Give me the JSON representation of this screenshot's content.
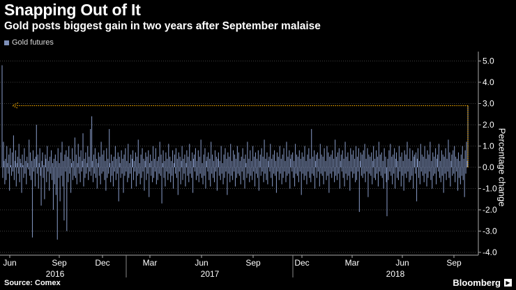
{
  "header": {
    "title": "Snapping Out of It",
    "subtitle": "Gold posts biggest gain in two years after September malaise"
  },
  "legend": {
    "label": "Gold futures",
    "swatch_color": "#7d8fb8"
  },
  "footer": {
    "source": "Source: Comex",
    "brand": "Bloomberg"
  },
  "colors": {
    "bar": "#7d8fb8",
    "arrow": "#f2a900",
    "grid": "#555555",
    "background": "#000000"
  },
  "chart_data": {
    "type": "bar",
    "series": [
      {
        "name": "Gold futures",
        "values": [
          4.8,
          -0.5,
          1.2,
          0.3,
          -0.8,
          0.4,
          -0.6,
          1.0,
          0.2,
          -0.3,
          0.6,
          -1.1,
          0.9,
          0.1,
          -0.4,
          0.7,
          -0.2,
          1.5,
          -0.6,
          0.3,
          0.8,
          -0.9,
          0.2,
          0.5,
          -0.3,
          1.1,
          -0.7,
          0.4,
          0.2,
          -1.2,
          0.6,
          0.1,
          -0.5,
          0.9,
          -0.3,
          0.3,
          -0.8,
          0.5,
          0.2,
          -0.1,
          1.3,
          -0.4,
          0.7,
          -0.6,
          0.3,
          -3.3,
          0.8,
          -0.2,
          0.4,
          -0.9,
          0.5,
          2.0,
          -0.3,
          0.6,
          -1.0,
          0.2,
          0.9,
          -0.4,
          -1.8,
          0.3,
          0.7,
          -0.5,
          0.1,
          -1.5,
          0.6,
          0.4,
          -0.7,
          1.0,
          -0.2,
          0.3,
          -1.1,
          0.5,
          -0.3,
          0.8,
          -0.6,
          0.2,
          -2.0,
          0.4,
          -0.8,
          0.6,
          -1.3,
          0.3,
          -3.4,
          0.9,
          -0.5,
          0.2,
          -1.6,
          0.7,
          -0.4,
          1.2,
          -0.9,
          0.3,
          -2.5,
          0.6,
          -0.2,
          0.8,
          -3.0,
          0.5,
          -0.7,
          1.0,
          -0.3,
          0.4,
          -1.2,
          0.2,
          0.9,
          -0.6,
          0.3,
          -0.4,
          1.4,
          -0.5,
          0.6,
          -0.8,
          0.2,
          1.1,
          -0.3,
          0.5,
          -0.7,
          0.8,
          -0.2,
          0.3,
          1.6,
          -0.9,
          0.4,
          -0.5,
          0.7,
          -0.3,
          0.2,
          1.0,
          -0.6,
          0.5,
          -0.2,
          1.8,
          -0.4,
          2.4,
          0.3,
          -0.7,
          0.6,
          -0.3,
          0.9,
          -0.5,
          0.4,
          -1.0,
          0.2,
          0.7,
          -0.4,
          0.5,
          -0.8,
          1.2,
          -0.3,
          0.6,
          -0.2,
          0.8,
          -0.6,
          0.3,
          -1.1,
          0.9,
          -0.5,
          0.4,
          -0.3,
          1.8,
          0.2,
          -0.7,
          0.6,
          -0.4,
          0.3,
          -0.9,
          0.5,
          -0.2,
          1.0,
          -0.6,
          0.4,
          -0.3,
          0.7,
          -1.6,
          0.5,
          0.2,
          -0.5,
          0.8,
          -0.3,
          0.4,
          -1.2,
          0.6,
          -0.4,
          0.9,
          -0.2,
          0.3,
          -0.7,
          1.1,
          -0.5,
          0.2,
          -0.3,
          0.6,
          -1.0,
          0.4,
          0.8,
          -0.6,
          0.3,
          -0.2,
          0.7,
          -0.9,
          0.5,
          -0.4,
          1.3,
          -0.3,
          0.2,
          -0.8,
          0.6,
          -0.5,
          0.9,
          -0.2,
          0.4,
          -1.1,
          0.3,
          0.7,
          -0.6,
          0.5,
          -0.3,
          0.8,
          -1.4,
          0.2,
          0.6,
          -0.4,
          0.3,
          -0.7,
          1.0,
          -0.5,
          0.4,
          -0.2,
          0.9,
          -0.8,
          0.3,
          -0.6,
          0.5,
          -0.3,
          1.2,
          -0.4,
          0.6,
          -1.7,
          0.2,
          0.8,
          -0.5,
          0.3,
          -0.9,
          0.7,
          -0.2,
          0.4,
          -0.6,
          1.1,
          -0.3,
          0.5,
          -0.7,
          0.3,
          -0.4,
          0.8,
          -1.0,
          0.2,
          0.6,
          -0.3,
          0.9,
          -0.5,
          0.4,
          -1.3,
          0.7,
          -0.2,
          0.5,
          -0.8,
          0.3,
          1.0,
          -0.6,
          0.4,
          -0.3,
          0.6,
          -0.9,
          0.2,
          0.8,
          -0.4,
          0.5,
          -0.7,
          1.1,
          -0.3,
          0.3,
          -0.5,
          0.7,
          -1.2,
          0.4,
          0.6,
          -0.2,
          0.9,
          -0.6,
          0.3,
          -0.4,
          0.8,
          -0.7,
          0.5,
          -0.3,
          1.3,
          -0.5,
          0.2,
          -0.8,
          0.6,
          -0.4,
          0.9,
          -1.0,
          0.3,
          0.5,
          -0.2,
          0.7,
          -0.6,
          0.4,
          -0.9,
          1.2,
          -0.3,
          0.6,
          -0.5,
          0.3,
          -0.7,
          0.8,
          -0.2,
          0.5,
          -1.1,
          0.4,
          0.7,
          -0.4,
          0.3,
          -0.6,
          1.0,
          -0.3,
          0.2,
          -0.8,
          0.6,
          -0.5,
          0.9,
          -0.2,
          0.4,
          -1.3,
          0.7,
          -0.3,
          0.5,
          -0.7,
          1.1,
          -0.4,
          0.3,
          -0.6,
          0.8,
          -0.2,
          0.6,
          -0.9,
          0.4,
          -0.5,
          1.0,
          -0.3,
          0.7,
          -0.4,
          0.3,
          -0.8,
          0.5,
          -0.2,
          0.9,
          -0.6,
          0.4,
          -1.0,
          0.6,
          0.2,
          -0.5,
          1.2,
          -0.3,
          0.4,
          -0.7,
          0.8,
          -0.4,
          0.3,
          -0.6,
          1.0,
          -0.2,
          0.5,
          -0.9,
          0.7,
          -0.3,
          0.4,
          -0.5,
          0.8,
          -1.1,
          0.3,
          0.6,
          -0.4,
          0.9,
          -0.2,
          0.5,
          -0.7,
          1.3,
          -0.3,
          0.4,
          -0.6,
          0.7,
          -0.8,
          0.3,
          0.5,
          -0.2,
          1.1,
          -0.5,
          0.4,
          -0.9,
          0.6,
          -0.3,
          0.8,
          -0.4,
          0.3,
          -1.2,
          0.7,
          -0.2,
          0.5,
          -0.6,
          1.0,
          -0.3,
          0.4,
          -0.8,
          0.6,
          -0.5,
          0.9,
          -0.2,
          0.3,
          -0.7,
          1.2,
          -0.4,
          0.5,
          -0.3,
          0.8,
          -1.0,
          0.4,
          0.6,
          -0.2,
          0.7,
          -0.5,
          0.3,
          -0.9,
          1.1,
          -0.3,
          0.6,
          -0.4,
          0.5,
          -0.7,
          0.8,
          -0.2,
          0.4,
          -1.3,
          0.7,
          -0.3,
          0.5,
          -0.6,
          1.0,
          -0.4,
          0.3,
          -0.8,
          0.6,
          -0.2,
          0.9,
          -0.5,
          0.4,
          -0.7,
          1.8,
          -0.3,
          0.5,
          -0.4,
          0.8,
          -1.0,
          0.3,
          0.6,
          -0.5,
          0.7,
          -0.2,
          0.4,
          -0.9,
          1.1,
          -0.3,
          0.6,
          -0.4,
          0.5,
          -0.8,
          0.9,
          -0.2,
          0.3,
          -0.6,
          1.0,
          -0.4,
          0.7,
          -1.2,
          0.5,
          -0.3,
          0.6,
          -0.5,
          0.8,
          -0.2,
          0.4,
          -0.7,
          1.3,
          -0.4,
          0.5,
          -0.6,
          0.7,
          -0.3,
          0.9,
          -1.0,
          0.3,
          0.6,
          -0.2,
          0.8,
          -0.5,
          0.4,
          -0.9,
          1.2,
          -0.3,
          0.5,
          -0.6,
          0.7,
          -0.4,
          0.3,
          -1.1,
          0.9,
          -0.2,
          0.6,
          -0.5,
          0.8,
          -0.3,
          0.4,
          -0.7,
          1.0,
          -0.6,
          0.5,
          -0.2,
          0.9,
          -2.1,
          0.3,
          0.7,
          -0.4,
          0.6,
          -0.5,
          0.8,
          -0.3,
          1.1,
          -0.7,
          0.4,
          -0.2,
          0.9,
          -1.4,
          0.6,
          -0.3,
          0.5,
          -0.4,
          0.7,
          -0.8,
          0.3,
          1.0,
          -0.5,
          0.4,
          -0.6,
          0.8,
          -0.3,
          0.5,
          -0.9,
          1.2,
          -0.2,
          0.6,
          -0.4,
          0.7,
          -0.5,
          0.3,
          -1.0,
          0.9,
          -0.3,
          0.5,
          -0.7,
          -2.3,
          0.4,
          -0.6,
          0.8,
          -0.2,
          1.1,
          -0.4,
          0.5,
          -0.8,
          0.6,
          -0.3,
          0.9,
          -1.0,
          0.4,
          0.7,
          -0.5,
          0.3,
          -0.6,
          1.0,
          -0.2,
          0.5,
          -0.9,
          0.7,
          -0.4,
          0.3,
          -1.1,
          0.8,
          -0.3,
          0.6,
          -0.5,
          1.2,
          -0.2,
          0.4,
          -0.7,
          0.9,
          -0.6,
          0.3,
          -0.4,
          0.8,
          -1.0,
          0.5,
          0.6,
          -0.3,
          0.7,
          -1.6,
          0.4,
          0.9,
          -0.5,
          0.3,
          -0.8,
          1.1,
          -0.2,
          0.6,
          -0.4,
          0.5,
          -0.7,
          1.0,
          -0.3,
          0.4,
          -0.9,
          0.8,
          -0.5,
          0.6,
          -0.2,
          1.2,
          -0.6,
          0.3,
          -1.0,
          0.7,
          -0.4,
          0.5,
          -0.3,
          0.9,
          -0.8,
          0.4,
          0.6,
          -0.2,
          1.1,
          -0.5,
          0.3,
          -0.7,
          0.8,
          -0.4,
          0.6,
          -1.2,
          0.5,
          -0.3,
          0.9,
          -0.6,
          0.4,
          -0.2,
          1.3,
          -0.5,
          0.7,
          -0.9,
          0.3,
          0.6,
          -0.4,
          0.8,
          -0.3,
          1.0,
          -0.7,
          0.5,
          -0.2,
          0.4,
          -1.1,
          0.7,
          -0.5,
          0.3,
          -0.8,
          0.6,
          -0.4,
          1.0,
          -0.6,
          0.4,
          -1.4,
          0.8,
          -0.3,
          1.2,
          0.3,
          2.9
        ]
      }
    ],
    "x_tick_labels": [
      "Jun",
      "Sep",
      "Dec",
      "Mar",
      "Jun",
      "Sep",
      "Dec",
      "Mar",
      "Jun",
      "Sep"
    ],
    "x_year_labels": [
      "2016",
      "2017",
      "2018"
    ],
    "y_ticks": [
      5.0,
      4.0,
      3.0,
      2.0,
      1.0,
      0.0,
      -1.0,
      -2.0,
      -3.0,
      -4.0
    ],
    "y_tick_labels": [
      "5.0",
      "4.0",
      "3.0",
      "2.0",
      "1.0",
      "0.0",
      "-1.0",
      "-2.0",
      "-3.0",
      "-4.0"
    ],
    "ylim": [
      -4.0,
      5.5
    ],
    "ylabel": "Percentage change",
    "y_axis_side": "right",
    "grid": "horizontal-dotted",
    "legend_position": "top-left",
    "annotation": {
      "type": "arrow",
      "from_value": 2.9,
      "to_value": 2.9,
      "direction": "left"
    }
  }
}
